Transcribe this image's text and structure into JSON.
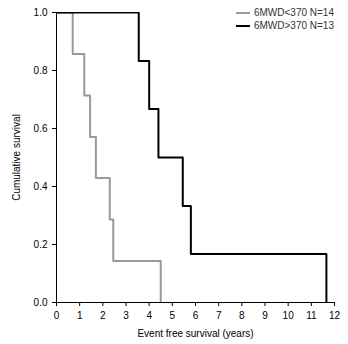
{
  "chart_data": {
    "type": "line",
    "xlabel": "Event free survival (years)",
    "ylabel": "Cumulative survival",
    "line_style": "step",
    "legend": "top-right",
    "series": [
      {
        "name": "6MWD<370 N=14",
        "color": "#999999",
        "x": [
          0,
          0.7,
          1.2,
          1.45,
          1.7,
          2.3,
          2.45,
          4.5
        ],
        "values": [
          1.0,
          0.857,
          0.714,
          0.571,
          0.429,
          0.286,
          0.143,
          0.0
        ]
      },
      {
        "name": "6MWD>370 N=13",
        "color": "#000000",
        "x": [
          0,
          3.55,
          4.0,
          4.4,
          5.45,
          5.8,
          11.65
        ],
        "values": [
          1.0,
          0.833,
          0.667,
          0.5,
          0.333,
          0.167,
          0.0
        ]
      }
    ],
    "xlim": [
      0,
      12
    ],
    "xticks": [
      0,
      1,
      2,
      3,
      4,
      5,
      6,
      7,
      8,
      9,
      10,
      11,
      12
    ],
    "ylim": [
      0,
      1
    ],
    "yticks": [
      {
        "value": 0,
        "label": "0.0"
      },
      {
        "value": 0.2,
        "label": "0.2"
      },
      {
        "value": 0.4,
        "label": "0.4"
      },
      {
        "value": 0.6,
        "label": "0.6"
      },
      {
        "value": 0.8,
        "label": "0.8"
      },
      {
        "value": 1,
        "label": "1.0"
      }
    ]
  }
}
